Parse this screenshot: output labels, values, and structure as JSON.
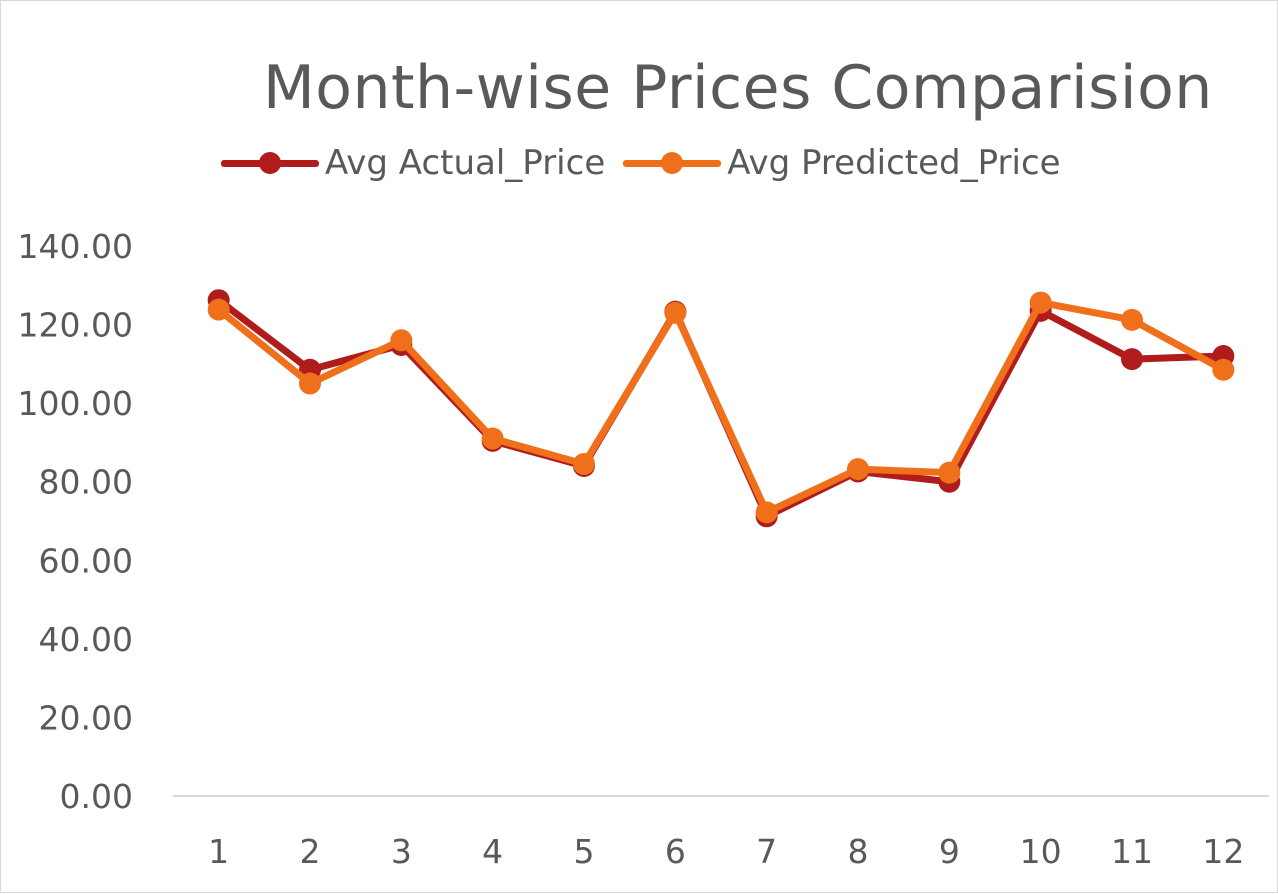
{
  "chart_data": {
    "type": "line",
    "title": "Month-wise Prices Comparision",
    "xlabel": "",
    "ylabel": "",
    "categories": [
      "1",
      "2",
      "3",
      "4",
      "5",
      "6",
      "7",
      "8",
      "9",
      "10",
      "11",
      "12"
    ],
    "y_tick_labels": [
      "0.00",
      "20.00",
      "40.00",
      "60.00",
      "80.00",
      "100.00",
      "120.00",
      "140.00"
    ],
    "ylim": [
      0,
      140
    ],
    "grid": false,
    "legend_position": "top",
    "series": [
      {
        "name": "Avg Actual_Price",
        "color": "#b01c1c",
        "values": [
          126.2,
          108.5,
          114.8,
          90.4,
          84.0,
          123.3,
          71.2,
          82.6,
          80.0,
          123.5,
          111.2,
          112.0
        ]
      },
      {
        "name": "Avg Predicted_Price",
        "color": "#ef6f1a",
        "values": [
          123.8,
          105.0,
          116.0,
          91.0,
          84.5,
          123.0,
          72.2,
          83.2,
          82.3,
          125.6,
          121.2,
          108.5
        ]
      }
    ]
  }
}
